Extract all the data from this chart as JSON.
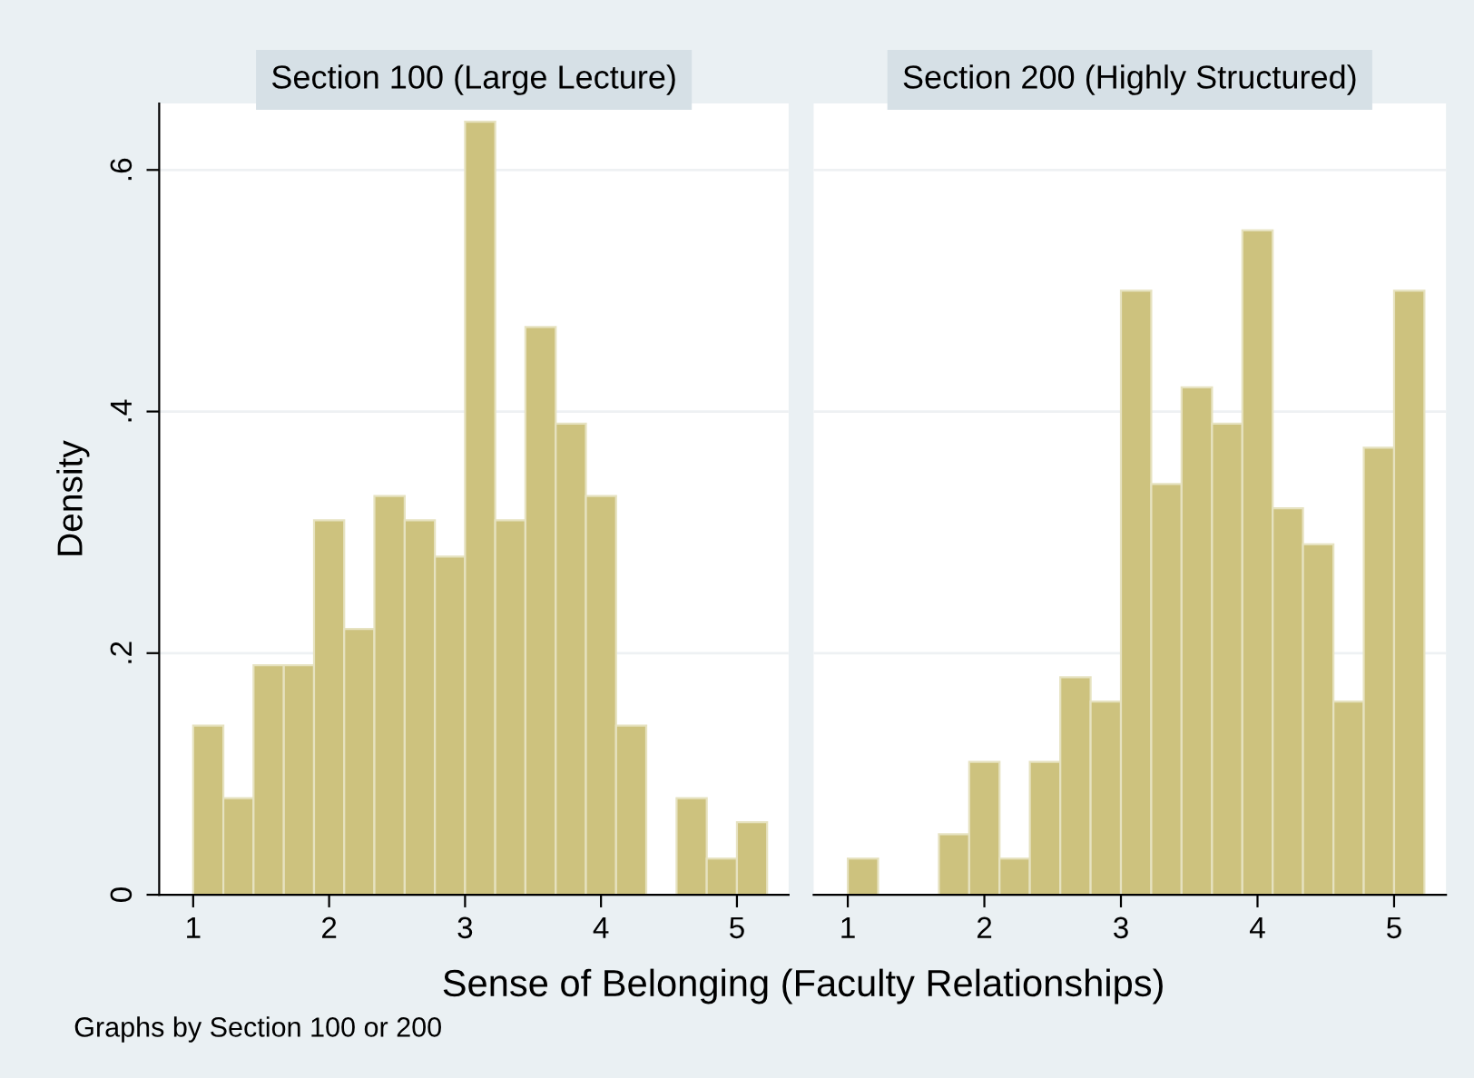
{
  "chart_data": [
    {
      "type": "histogram",
      "title": "Section 100 (Large Lecture)",
      "ylabel": "Density",
      "xlabel": "Sense of Belonging (Faculty Relationships)",
      "annotations": [
        "Graphs by Section 100 or 200"
      ],
      "bins": [
        1.0,
        1.222,
        1.444,
        1.667,
        1.889,
        2.111,
        2.333,
        2.556,
        2.778,
        3.0,
        3.222,
        3.444,
        3.667,
        3.889,
        4.111,
        4.333,
        4.556,
        4.778,
        5.0,
        5.222
      ],
      "values": [
        0.14,
        0.08,
        0.19,
        0.19,
        0.31,
        0.22,
        0.33,
        0.31,
        0.28,
        0.64,
        0.31,
        0.47,
        0.39,
        0.33,
        0.14,
        0,
        0.08,
        0.03,
        0.06
      ],
      "color": "#cdc27e",
      "xlim": [
        0.75,
        5.38
      ],
      "ylim": [
        0,
        0.655
      ],
      "xticks": [
        1,
        2,
        3,
        4,
        5
      ],
      "yticks": [
        {
          "value": 0,
          "label": "0"
        },
        {
          "value": 0.2,
          "label": ".2"
        },
        {
          "value": 0.4,
          "label": ".4"
        },
        {
          "value": 0.6,
          "label": ".6"
        }
      ],
      "grid": "y"
    },
    {
      "type": "histogram",
      "title": "Section 200 (Highly Structured)",
      "bins": [
        1.0,
        1.222,
        1.444,
        1.667,
        1.889,
        2.111,
        2.333,
        2.556,
        2.778,
        3.0,
        3.222,
        3.444,
        3.667,
        3.889,
        4.111,
        4.333,
        4.556,
        4.778,
        5.0,
        5.222
      ],
      "values": [
        0.03,
        0,
        0,
        0.05,
        0.11,
        0.03,
        0.11,
        0.18,
        0.16,
        0.5,
        0.34,
        0.42,
        0.39,
        0.55,
        0.32,
        0.29,
        0.16,
        0.37,
        0.5
      ],
      "color": "#cdc27e",
      "xlim": [
        0.75,
        5.38
      ],
      "ylim": [
        0,
        0.655
      ],
      "xticks": [
        1,
        2,
        3,
        4,
        5
      ],
      "yticks": [
        {
          "value": 0,
          "label": null
        },
        {
          "value": 0.2,
          "label": null
        },
        {
          "value": 0.4,
          "label": null
        },
        {
          "value": 0.6,
          "label": null
        }
      ],
      "grid": "y",
      "tick_labels": "x"
    }
  ]
}
